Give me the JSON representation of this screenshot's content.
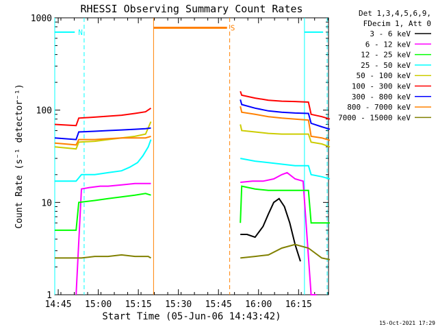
{
  "chart_data": {
    "type": "line",
    "title": "RHESSI Observing Summary Count Rates",
    "xlabel": "Start Time (05-Jun-06 14:43:42)",
    "ylabel": "Count Rate (s⁻¹ detector⁻¹)",
    "yscale": "log",
    "ylim": [
      1,
      1000
    ],
    "xlim_minutes": [
      0,
      102.5
    ],
    "x_ticks": [
      "14:45",
      "15:00",
      "15:15",
      "15:30",
      "15:45",
      "16:00",
      "16:15"
    ],
    "y_ticks": [
      "1",
      "10",
      "100",
      "1000"
    ],
    "legend_header": [
      "Det 1,3,4,5,6,9,",
      "FDecim 1, Att 0"
    ],
    "legend_position": "right",
    "footer": "15-Oct-2021 17:29",
    "series": [
      {
        "name": "3 - 6 keV",
        "color": "#000000",
        "segments": [
          {
            "x": [
              69.5,
              72,
              75,
              78,
              80,
              82,
              84,
              86,
              88,
              90,
              92
            ],
            "y": [
              4.5,
              4.5,
              4.2,
              5.5,
              7.5,
              10,
              11,
              9,
              6,
              3.5,
              2.3
            ]
          }
        ]
      },
      {
        "name": "6 - 12 keV",
        "color": "#ff00ff",
        "segments": [
          {
            "x": [
              8,
              10,
              13,
              17,
              20,
              25,
              30,
              34,
              36
            ],
            "y": [
              1,
              14,
              14.5,
              15,
              15,
              15.5,
              16,
              16,
              16
            ]
          },
          {
            "x": [
              69.5,
              74,
              78,
              82,
              85,
              87,
              90,
              93,
              96,
              98
            ],
            "y": [
              16.5,
              17,
              17,
              18,
              20,
              21,
              18,
              17,
              1,
              1
            ]
          }
        ]
      },
      {
        "name": "12 - 25 keV",
        "color": "#00ff00",
        "segments": [
          {
            "x": [
              0,
              8,
              9,
              15,
              20,
              25,
              30,
              34,
              36
            ],
            "y": [
              5,
              5,
              10,
              10.5,
              11,
              11.5,
              12,
              12.5,
              12
            ]
          },
          {
            "x": [
              69.5,
              70,
              75,
              80,
              85,
              90,
              95,
              96,
              98,
              103
            ],
            "y": [
              6,
              15,
              14,
              13.5,
              13.5,
              13.5,
              13.5,
              6,
              6,
              6
            ]
          }
        ]
      },
      {
        "name": "25 - 50 keV",
        "color": "#00ffff",
        "segments": [
          {
            "x": [
              0,
              8,
              10,
              15,
              20,
              25,
              28,
              31,
              33,
              35,
              36
            ],
            "y": [
              17,
              17,
              20,
              20,
              21,
              22,
              24,
              27,
              32,
              40,
              48
            ]
          },
          {
            "x": [
              69.5,
              75,
              80,
              85,
              90,
              95,
              96,
              100,
              103
            ],
            "y": [
              30,
              28,
              27,
              26,
              25,
              25,
              20,
              19,
              18
            ]
          }
        ]
      },
      {
        "name": "50 - 100 keV",
        "color": "#cccc00",
        "segments": [
          {
            "x": [
              0,
              8,
              9,
              15,
              20,
              25,
              30,
              34,
              36
            ],
            "y": [
              40,
              38,
              45,
              46,
              48,
              50,
              52,
              55,
              75
            ]
          },
          {
            "x": [
              69.5,
              70,
              75,
              80,
              85,
              90,
              95,
              96,
              100,
              103
            ],
            "y": [
              70,
              60,
              58,
              56,
              55,
              55,
              55,
              45,
              43,
              40
            ]
          }
        ]
      },
      {
        "name": "100 - 300 keV",
        "color": "#ff0000",
        "segments": [
          {
            "x": [
              0,
              8,
              9,
              15,
              20,
              25,
              30,
              34,
              36
            ],
            "y": [
              70,
              68,
              82,
              84,
              86,
              88,
              92,
              96,
              105
            ]
          },
          {
            "x": [
              69.5,
              70,
              75,
              80,
              85,
              90,
              95,
              96,
              100,
              103
            ],
            "y": [
              160,
              145,
              135,
              128,
              125,
              124,
              122,
              90,
              85,
              80
            ]
          }
        ]
      },
      {
        "name": "300 - 800 keV",
        "color": "#0000ff",
        "segments": [
          {
            "x": [
              0,
              8,
              9,
              15,
              20,
              25,
              30,
              34,
              36
            ],
            "y": [
              50,
              48,
              58,
              59,
              60,
              61,
              62,
              63,
              64
            ]
          },
          {
            "x": [
              69.5,
              70,
              75,
              80,
              85,
              90,
              95,
              96,
              100,
              103
            ],
            "y": [
              130,
              115,
              105,
              98,
              95,
              93,
              92,
              72,
              66,
              62
            ]
          }
        ]
      },
      {
        "name": "800 - 7000 keV",
        "color": "#ff8000",
        "segments": [
          {
            "x": [
              0,
              8,
              9,
              15,
              20,
              25,
              30,
              34,
              36
            ],
            "y": [
              44,
              42,
              48,
              48,
              49,
              50,
              50,
              50,
              52
            ]
          },
          {
            "x": [
              69.5,
              70,
              75,
              80,
              85,
              90,
              95,
              96,
              100,
              103
            ],
            "y": [
              110,
              95,
              90,
              85,
              82,
              80,
              78,
              52,
              50,
              47
            ]
          }
        ]
      },
      {
        "name": "7000 - 15000 keV",
        "color": "#808000",
        "segments": [
          {
            "x": [
              0,
              5,
              10,
              15,
              20,
              25,
              30,
              35,
              36
            ],
            "y": [
              2.5,
              2.5,
              2.5,
              2.6,
              2.6,
              2.7,
              2.6,
              2.6,
              2.5
            ]
          },
          {
            "x": [
              69.5,
              75,
              80,
              85,
              90,
              95,
              100,
              103
            ],
            "y": [
              2.5,
              2.6,
              2.7,
              3.2,
              3.5,
              3.2,
              2.5,
              2.4
            ]
          }
        ]
      }
    ],
    "state_markers": [
      {
        "label": "N",
        "color": "#00ffff",
        "solid": [
          0,
          7.5
        ],
        "dashed": [
          7.5,
          11.0
        ],
        "level": 700
      },
      {
        "label": "",
        "color": "#00ffff",
        "solid": [
          93.5,
          100.5
        ],
        "dashed": [
          100.5,
          102.0
        ],
        "level": 700
      },
      {
        "label": "S",
        "color": "#ff8000",
        "solid": [
          37.0,
          64.5
        ],
        "dashed": [
          64.5,
          65.5
        ],
        "level": 780,
        "thick": true
      }
    ]
  }
}
